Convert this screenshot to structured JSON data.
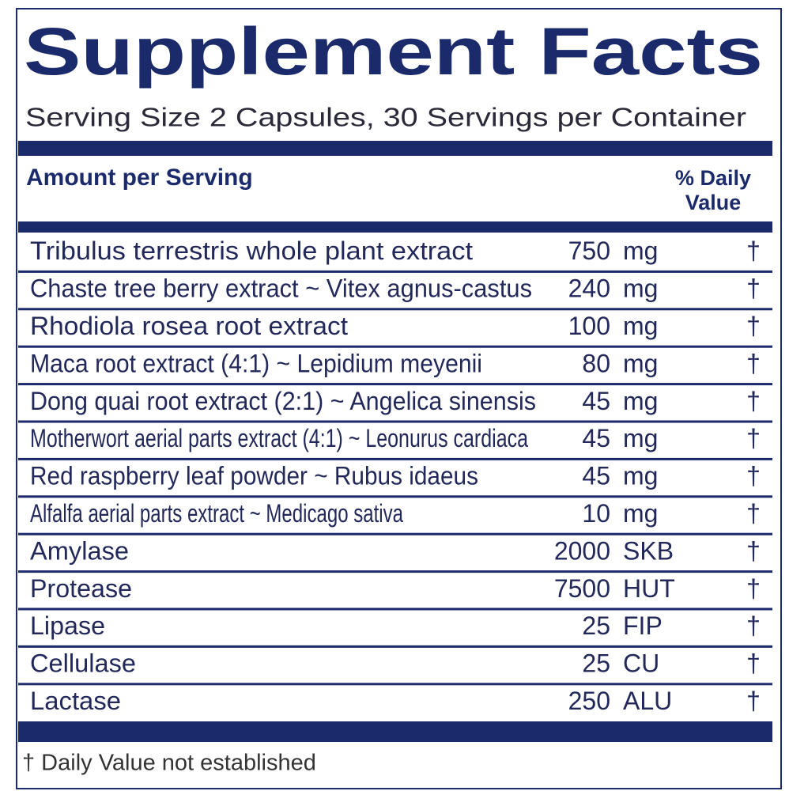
{
  "header": {
    "title": "Supplement Facts",
    "serving": "Serving Size 2 Capsules, 30 Servings per Container"
  },
  "columns": {
    "amount": "Amount per Serving",
    "daily_value_line1": "% Daily",
    "daily_value_line2": "Value"
  },
  "table": {
    "rows": [
      [
        "Tribulus terrestris whole plant extract",
        750,
        "mg",
        "†"
      ],
      [
        "Chaste tree berry extract ~ Vitex agnus-castus",
        240,
        "mg",
        "†"
      ],
      [
        "Rhodiola rosea root extract",
        100,
        "mg",
        "†"
      ],
      [
        "Maca root extract (4:1) ~ Lepidium meyenii",
        80,
        "mg",
        "†"
      ],
      [
        "Dong quai root extract (2:1) ~ Angelica sinensis",
        45,
        "mg",
        "†"
      ],
      [
        "Motherwort aerial parts extract (4:1) ~ Leonurus cardiaca",
        45,
        "mg",
        "†"
      ],
      [
        "Red raspberry leaf powder ~ Rubus idaeus",
        45,
        "mg",
        "†"
      ],
      [
        "Alfalfa aerial parts extract ~ Medicago sativa",
        10,
        "mg",
        "†"
      ],
      [
        "Amylase",
        2000,
        "SKB",
        "†"
      ],
      [
        "Protease",
        7500,
        "HUT",
        "†"
      ],
      [
        "Lipase",
        25,
        "FIP",
        "†"
      ],
      [
        "Cellulase",
        25,
        "CU",
        "†"
      ],
      [
        "Lactase",
        250,
        "ALU",
        "†"
      ]
    ]
  },
  "footnote": "† Daily Value not established"
}
